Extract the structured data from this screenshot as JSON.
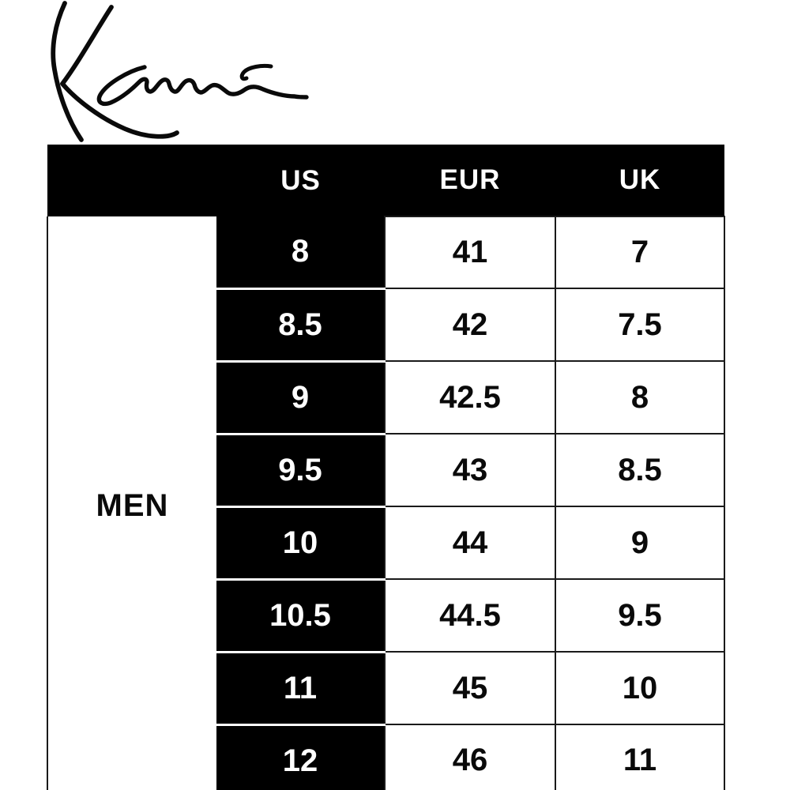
{
  "logo": {
    "icon": "kani-signature-logo"
  },
  "chart_data": {
    "type": "table",
    "title": "",
    "columns": [
      "",
      "US",
      "EUR",
      "UK"
    ],
    "row_group_label": "MEN",
    "rows": [
      [
        "8",
        "41",
        "7"
      ],
      [
        "8.5",
        "42",
        "7.5"
      ],
      [
        "9",
        "42.5",
        "8"
      ],
      [
        "9.5",
        "43",
        "8.5"
      ],
      [
        "10",
        "44",
        "9"
      ],
      [
        "10.5",
        "44.5",
        "9.5"
      ],
      [
        "11",
        "45",
        "10"
      ],
      [
        "12",
        "46",
        "11"
      ]
    ],
    "layout": {
      "legend": "none",
      "grid": "on"
    }
  },
  "colors": {
    "header_bg": "#000000",
    "header_text": "#ffffff",
    "us_column_bg": "#000000",
    "us_column_text": "#ffffff",
    "cell_bg": "#ffffff",
    "cell_text": "#0a0a0a",
    "grid_line": "#1a1a1a",
    "signature_ink": "#0a0a0a"
  }
}
